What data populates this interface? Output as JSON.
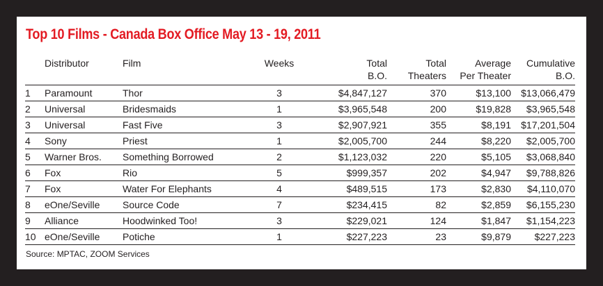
{
  "colors": {
    "background": "#231f20",
    "panel": "#ffffff",
    "title": "#e31b23",
    "text": "#231f20"
  },
  "title": "Top 10 Films - Canada Box Office May 13 - 19, 2011",
  "headers": {
    "distributor": "Distributor",
    "film": "Film",
    "weeks": "Weeks",
    "total_bo_line1": "Total",
    "total_bo_line2": "B.O.",
    "total_theaters_line1": "Total",
    "total_theaters_line2": "Theaters",
    "average_line1": "Average",
    "average_line2": "Per Theater",
    "cumulative_line1": "Cumulative",
    "cumulative_line2": "B.O."
  },
  "rows": [
    {
      "rank": "1",
      "distributor": "Paramount",
      "film": "Thor",
      "weeks": "3",
      "total_bo": "$4,847,127",
      "theaters": "370",
      "average": "$13,100",
      "cumulative": "$13,066,479"
    },
    {
      "rank": "2",
      "distributor": "Universal",
      "film": "Bridesmaids",
      "weeks": "1",
      "total_bo": "$3,965,548",
      "theaters": "200",
      "average": "$19,828",
      "cumulative": "$3,965,548"
    },
    {
      "rank": "3",
      "distributor": "Universal",
      "film": "Fast Five",
      "weeks": "3",
      "total_bo": "$2,907,921",
      "theaters": "355",
      "average": "$8,191",
      "cumulative": "$17,201,504"
    },
    {
      "rank": "4",
      "distributor": "Sony",
      "film": "Priest",
      "weeks": "1",
      "total_bo": "$2,005,700",
      "theaters": "244",
      "average": "$8,220",
      "cumulative": "$2,005,700"
    },
    {
      "rank": "5",
      "distributor": "Warner Bros.",
      "film": "Something Borrowed",
      "weeks": "2",
      "total_bo": "$1,123,032",
      "theaters": "220",
      "average": "$5,105",
      "cumulative": "$3,068,840"
    },
    {
      "rank": "6",
      "distributor": "Fox",
      "film": "Rio",
      "weeks": "5",
      "total_bo": "$999,357",
      "theaters": "202",
      "average": "$4,947",
      "cumulative": "$9,788,826"
    },
    {
      "rank": "7",
      "distributor": "Fox",
      "film": "Water For Elephants",
      "weeks": "4",
      "total_bo": "$489,515",
      "theaters": "173",
      "average": "$2,830",
      "cumulative": "$4,110,070"
    },
    {
      "rank": "8",
      "distributor": "eOne/Seville",
      "film": "Source Code",
      "weeks": "7",
      "total_bo": "$234,415",
      "theaters": "82",
      "average": "$2,859",
      "cumulative": "$6,155,230"
    },
    {
      "rank": "9",
      "distributor": "Alliance",
      "film": "Hoodwinked Too!",
      "weeks": "3",
      "total_bo": "$229,021",
      "theaters": "124",
      "average": "$1,847",
      "cumulative": "$1,154,223"
    },
    {
      "rank": "10",
      "distributor": "eOne/Seville",
      "film": "Potiche",
      "weeks": "1",
      "total_bo": "$227,223",
      "theaters": "23",
      "average": "$9,879",
      "cumulative": "$227,223"
    }
  ],
  "source": "Source: MPTAC, ZOOM Services"
}
